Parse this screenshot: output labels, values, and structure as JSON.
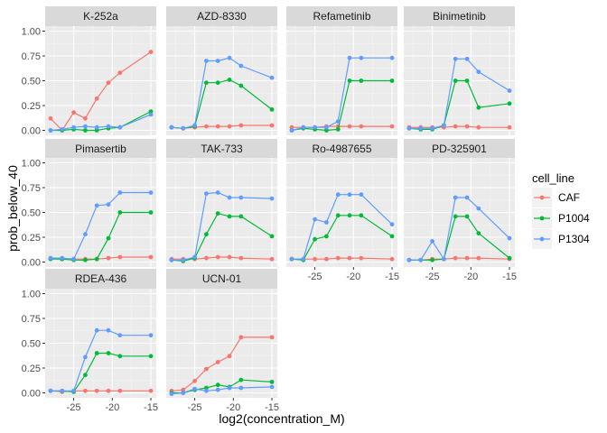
{
  "chart_data": {
    "type": "line",
    "xlabel": "log2(concentration_M)",
    "ylabel": "prob_below_40",
    "x_ticks": [
      -25,
      -20,
      -15
    ],
    "y_ticks": [
      0.0,
      0.25,
      0.5,
      0.75,
      1.0
    ],
    "y_tick_labels": [
      "0.00",
      "0.25",
      "0.50",
      "0.75",
      "1.00"
    ],
    "xlim": [
      -28.7,
      -14.3
    ],
    "ylim": [
      -0.05,
      1.05
    ],
    "grid": true,
    "legend": {
      "title": "cell_line",
      "position": "right",
      "entries": [
        "CAF",
        "P1004",
        "P1304"
      ]
    },
    "colors": {
      "CAF": "#F8766D",
      "P1004": "#00BA38",
      "P1304": "#619CFF"
    },
    "x": [
      -28,
      -26.5,
      -25,
      -23.5,
      -22,
      -20.5,
      -19,
      -15
    ],
    "panels": [
      {
        "title": "K-252a",
        "series": [
          {
            "name": "CAF",
            "values": [
              0.12,
              0.0,
              0.18,
              0.12,
              0.32,
              0.48,
              0.58,
              0.79
            ]
          },
          {
            "name": "P1004",
            "values": [
              0.0,
              0.0,
              0.01,
              0.0,
              0.0,
              0.02,
              0.03,
              0.19
            ]
          },
          {
            "name": "P1304",
            "values": [
              0.0,
              0.01,
              0.03,
              0.04,
              0.03,
              0.04,
              0.03,
              0.16
            ]
          }
        ]
      },
      {
        "title": "AZD-8330",
        "series": [
          {
            "name": "CAF",
            "values": [
              0.03,
              0.02,
              0.03,
              0.04,
              0.04,
              0.04,
              0.05,
              0.05
            ]
          },
          {
            "name": "P1004",
            "values": [
              0.03,
              0.02,
              0.04,
              0.48,
              0.48,
              0.51,
              0.45,
              0.21
            ]
          },
          {
            "name": "P1304",
            "values": [
              0.03,
              0.02,
              0.05,
              0.7,
              0.7,
              0.73,
              0.65,
              0.53
            ]
          }
        ]
      },
      {
        "title": "Refametinib",
        "series": [
          {
            "name": "CAF",
            "values": [
              0.03,
              0.03,
              0.03,
              0.04,
              0.04,
              0.04,
              0.04,
              0.04
            ]
          },
          {
            "name": "P1004",
            "values": [
              0.0,
              0.02,
              0.01,
              0.0,
              0.01,
              0.5,
              0.5,
              0.5
            ]
          },
          {
            "name": "P1304",
            "values": [
              0.0,
              0.03,
              0.03,
              0.03,
              0.09,
              0.73,
              0.73,
              0.73
            ]
          }
        ]
      },
      {
        "title": "Binimetinib",
        "series": [
          {
            "name": "CAF",
            "values": [
              0.03,
              0.03,
              0.03,
              0.03,
              0.04,
              0.04,
              0.03,
              0.03
            ]
          },
          {
            "name": "P1004",
            "values": [
              0.02,
              0.01,
              0.01,
              0.05,
              0.5,
              0.5,
              0.23,
              0.27
            ]
          },
          {
            "name": "P1304",
            "values": [
              0.02,
              0.02,
              0.02,
              0.05,
              0.72,
              0.72,
              0.59,
              0.4
            ]
          }
        ]
      },
      {
        "title": "Pimasertib",
        "series": [
          {
            "name": "CAF",
            "values": [
              0.04,
              0.03,
              0.03,
              0.03,
              0.03,
              0.04,
              0.05,
              0.05
            ]
          },
          {
            "name": "P1004",
            "values": [
              0.03,
              0.03,
              0.02,
              0.02,
              0.03,
              0.24,
              0.5,
              0.5
            ]
          },
          {
            "name": "P1304",
            "values": [
              0.04,
              0.04,
              0.03,
              0.28,
              0.57,
              0.58,
              0.7,
              0.7
            ]
          }
        ]
      },
      {
        "title": "TAK-733",
        "series": [
          {
            "name": "CAF",
            "values": [
              0.03,
              0.03,
              0.03,
              0.04,
              0.05,
              0.05,
              0.04,
              0.03
            ]
          },
          {
            "name": "P1004",
            "values": [
              0.02,
              0.01,
              0.04,
              0.28,
              0.49,
              0.46,
              0.46,
              0.26
            ]
          },
          {
            "name": "P1304",
            "values": [
              0.02,
              0.02,
              0.05,
              0.69,
              0.7,
              0.65,
              0.65,
              0.64
            ]
          }
        ]
      },
      {
        "title": "Ro-4987655",
        "series": [
          {
            "name": "CAF",
            "values": [
              0.03,
              0.03,
              0.03,
              0.03,
              0.04,
              0.04,
              0.04,
              0.03
            ]
          },
          {
            "name": "P1004",
            "values": [
              0.03,
              0.02,
              0.23,
              0.26,
              0.47,
              0.47,
              0.47,
              0.26
            ]
          },
          {
            "name": "P1304",
            "values": [
              0.03,
              0.03,
              0.43,
              0.4,
              0.68,
              0.68,
              0.68,
              0.38
            ]
          }
        ]
      },
      {
        "title": "PD-325901",
        "series": [
          {
            "name": "CAF",
            "values": [
              0.02,
              0.02,
              0.03,
              0.03,
              0.04,
              0.04,
              0.04,
              0.03
            ]
          },
          {
            "name": "P1004",
            "values": [
              0.02,
              0.02,
              0.02,
              0.03,
              0.46,
              0.46,
              0.29,
              0.04
            ]
          },
          {
            "name": "P1304",
            "values": [
              0.02,
              0.02,
              0.21,
              0.03,
              0.65,
              0.65,
              0.54,
              0.24
            ]
          }
        ]
      },
      {
        "title": "RDEA-436",
        "series": [
          {
            "name": "CAF",
            "values": [
              0.02,
              0.01,
              0.02,
              0.02,
              0.02,
              0.02,
              0.02,
              0.02
            ]
          },
          {
            "name": "P1004",
            "values": [
              0.02,
              0.02,
              0.01,
              0.18,
              0.4,
              0.4,
              0.37,
              0.37
            ]
          },
          {
            "name": "P1304",
            "values": [
              0.02,
              0.02,
              0.02,
              0.36,
              0.63,
              0.63,
              0.58,
              0.58
            ]
          }
        ]
      },
      {
        "title": "UCN-01",
        "series": [
          {
            "name": "CAF",
            "values": [
              0.02,
              0.03,
              0.12,
              0.24,
              0.31,
              0.37,
              0.56,
              0.56
            ]
          },
          {
            "name": "P1004",
            "values": [
              0.0,
              0.0,
              0.03,
              0.05,
              0.08,
              0.06,
              0.13,
              0.11
            ]
          },
          {
            "name": "P1304",
            "values": [
              -0.01,
              0.0,
              0.04,
              0.02,
              0.03,
              0.05,
              0.05,
              0.06
            ]
          }
        ]
      }
    ]
  }
}
